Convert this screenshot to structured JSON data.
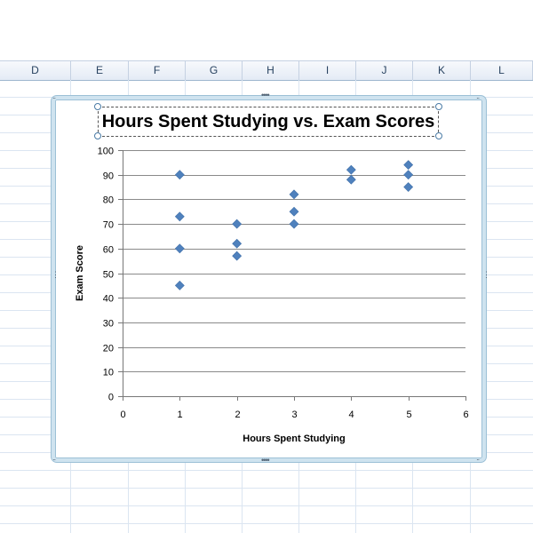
{
  "columns": [
    "D",
    "E",
    "F",
    "G",
    "H",
    "I",
    "J",
    "K",
    "L"
  ],
  "chart_data": {
    "type": "scatter",
    "title": "Hours Spent Studying vs. Exam Scores",
    "xlabel": "Hours Spent Studying",
    "ylabel": "Exam Score",
    "xlim": [
      0,
      6
    ],
    "ylim": [
      0,
      100
    ],
    "x_ticks": [
      "0",
      "1",
      "2",
      "3",
      "4",
      "5",
      "6"
    ],
    "y_ticks": [
      "0",
      "10",
      "20",
      "30",
      "40",
      "50",
      "60",
      "70",
      "80",
      "90",
      "100"
    ],
    "grid": "horizontal",
    "legend": "none",
    "marker": "diamond",
    "marker_color": "#4f81bd",
    "points": [
      {
        "x": 1,
        "y": 90
      },
      {
        "x": 1,
        "y": 73
      },
      {
        "x": 1,
        "y": 60
      },
      {
        "x": 1,
        "y": 45
      },
      {
        "x": 2,
        "y": 70
      },
      {
        "x": 2,
        "y": 62
      },
      {
        "x": 2,
        "y": 57
      },
      {
        "x": 3,
        "y": 82
      },
      {
        "x": 3,
        "y": 75
      },
      {
        "x": 3,
        "y": 70
      },
      {
        "x": 4,
        "y": 92
      },
      {
        "x": 4,
        "y": 88
      },
      {
        "x": 5,
        "y": 94
      },
      {
        "x": 5,
        "y": 90
      },
      {
        "x": 5,
        "y": 85
      }
    ]
  }
}
